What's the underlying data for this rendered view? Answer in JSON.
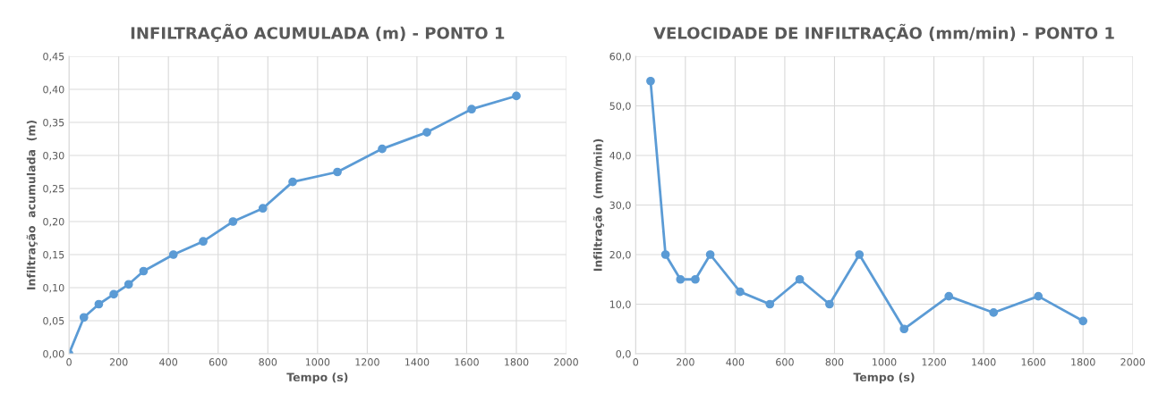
{
  "chart_data": [
    {
      "type": "line",
      "title": "INFILTRAÇÃO ACUMULADA (m) - PONTO 1",
      "xlabel": "Tempo (s)",
      "ylabel": "Infiltração  acumulada  (m)",
      "x": [
        0,
        60,
        120,
        180,
        240,
        300,
        420,
        540,
        660,
        780,
        900,
        1080,
        1260,
        1440,
        1620,
        1800
      ],
      "series": [
        {
          "color": "#5b9bd5",
          "values": [
            0,
            0.055,
            0.075,
            0.09,
            0.105,
            0.125,
            0.15,
            0.17,
            0.2,
            0.22,
            0.26,
            0.275,
            0.31,
            0.335,
            0.37,
            0.39
          ]
        }
      ],
      "xlim": [
        0,
        2000
      ],
      "xticks": [
        0,
        200,
        400,
        600,
        800,
        1000,
        1200,
        1400,
        1600,
        1800,
        2000
      ],
      "ylim": [
        0,
        0.45
      ],
      "yticks": [
        {
          "value": 0,
          "label": "0,00"
        },
        {
          "value": 0.05,
          "label": "0,05"
        },
        {
          "value": 0.1,
          "label": "0,10"
        },
        {
          "value": 0.15,
          "label": "0,15"
        },
        {
          "value": 0.2,
          "label": "0,20"
        },
        {
          "value": 0.25,
          "label": "0,25"
        },
        {
          "value": 0.3,
          "label": "0,30"
        },
        {
          "value": 0.35,
          "label": "0,35"
        },
        {
          "value": 0.4,
          "label": "0,40"
        },
        {
          "value": 0.45,
          "label": "0,45"
        }
      ],
      "grid": true,
      "marker": "circle",
      "line_style": "solid",
      "legend": false
    },
    {
      "type": "line",
      "title": "VELOCIDADE DE INFILTRAÇÃO (mm/min) - PONTO 1",
      "xlabel": "Tempo (s)",
      "ylabel": "Infiltração  (mm/min)",
      "x": [
        60,
        120,
        180,
        240,
        300,
        420,
        540,
        660,
        780,
        900,
        1080,
        1260,
        1440,
        1620,
        1800
      ],
      "series": [
        {
          "color": "#5b9bd5",
          "values": [
            55,
            20,
            15,
            15,
            20,
            12.5,
            10,
            15,
            10,
            20,
            5,
            11.6,
            8.3,
            11.6,
            6.6
          ]
        }
      ],
      "xlim": [
        0,
        2000
      ],
      "xticks": [
        0,
        200,
        400,
        600,
        800,
        1000,
        1200,
        1400,
        1600,
        1800,
        2000
      ],
      "ylim": [
        0,
        60
      ],
      "yticks": [
        {
          "value": 0,
          "label": "0,0"
        },
        {
          "value": 10,
          "label": "10,0"
        },
        {
          "value": 20,
          "label": "20,0"
        },
        {
          "value": 30,
          "label": "30,0"
        },
        {
          "value": 40,
          "label": "40,0"
        },
        {
          "value": 50,
          "label": "50,0"
        },
        {
          "value": 60,
          "label": "60,0"
        }
      ],
      "grid": true,
      "marker": "circle",
      "line_style": "solid",
      "legend": false
    }
  ]
}
